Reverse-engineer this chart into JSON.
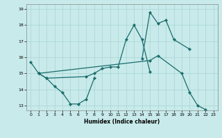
{
  "xlabel": "Humidex (Indice chaleur)",
  "background_color": "#c8eaea",
  "grid_color": "#a8d4d4",
  "line_color": "#1a6b6b",
  "xlim": [
    -0.5,
    23.5
  ],
  "ylim": [
    12.7,
    19.3
  ],
  "yticks": [
    13,
    14,
    15,
    16,
    17,
    18,
    19
  ],
  "xticks": [
    0,
    1,
    2,
    3,
    4,
    5,
    6,
    7,
    8,
    9,
    10,
    11,
    12,
    13,
    14,
    15,
    16,
    17,
    18,
    19,
    20,
    21,
    22,
    23
  ],
  "series": [
    {
      "x": [
        0,
        1,
        2,
        3,
        4,
        5,
        6,
        7,
        8
      ],
      "y": [
        15.7,
        15.0,
        14.7,
        14.2,
        13.8,
        13.1,
        13.1,
        13.4,
        14.7
      ]
    },
    {
      "x": [
        1,
        2,
        7,
        8,
        9,
        10,
        11,
        12,
        13,
        14,
        15
      ],
      "y": [
        15.0,
        14.7,
        14.8,
        15.0,
        15.3,
        15.4,
        15.4,
        17.1,
        18.0,
        17.1,
        15.1
      ]
    },
    {
      "x": [
        14,
        15,
        16,
        17,
        18,
        20
      ],
      "y": [
        15.9,
        18.8,
        18.1,
        18.3,
        17.1,
        16.5
      ]
    },
    {
      "x": [
        1,
        15,
        16,
        19,
        20,
        21,
        22
      ],
      "y": [
        15.0,
        15.8,
        16.1,
        15.0,
        13.8,
        13.0,
        12.75
      ]
    }
  ]
}
